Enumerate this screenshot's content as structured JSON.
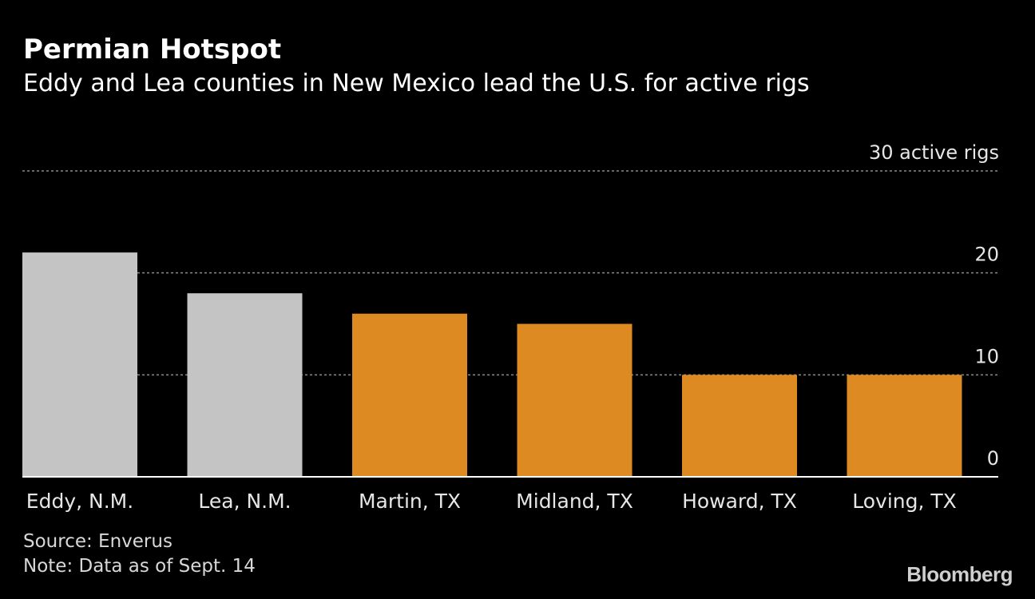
{
  "header": {
    "title": "Permian Hotspot",
    "subtitle": "Eddy and Lea counties in New Mexico lead the U.S. for active rigs"
  },
  "chart_data": {
    "type": "bar",
    "title": "Permian Hotspot",
    "subtitle": "Eddy and Lea counties in New Mexico lead the U.S. for active rigs",
    "categories": [
      "Eddy, N.M.",
      "Lea, N.M.",
      "Martin, TX",
      "Midland, TX",
      "Howard, TX",
      "Loving, TX"
    ],
    "values": [
      22,
      18,
      16,
      15,
      10,
      10
    ],
    "colors": [
      "#c4c4c4",
      "#c4c4c4",
      "#de8a22",
      "#de8a22",
      "#de8a22",
      "#de8a22"
    ],
    "ylim": [
      0,
      30
    ],
    "yticks": [
      0,
      10,
      20,
      30
    ],
    "ytick_labels": [
      "0",
      "10",
      "20",
      "30 active rigs"
    ],
    "xlabel": "",
    "ylabel": "active rigs",
    "grid": true,
    "legend": "none"
  },
  "footer": {
    "source": "Source: Enverus",
    "note": "Note: Data as of Sept. 14",
    "brand": "Bloomberg"
  },
  "colors": {
    "background": "#000000",
    "highlight_bar": "#c4c4c4",
    "texas_bar": "#de8a22",
    "gridline": "#8a8a8a",
    "text": "#ffffff"
  }
}
